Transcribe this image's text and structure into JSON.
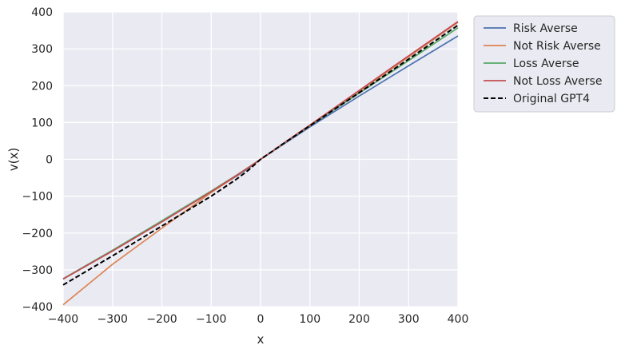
{
  "chart_data": {
    "type": "line",
    "title": "",
    "xlabel": "x",
    "ylabel": "v(x)",
    "xlim": [
      -400,
      400
    ],
    "ylim": [
      -400,
      400
    ],
    "xticks": [
      -400,
      -300,
      -200,
      -100,
      0,
      100,
      200,
      300,
      400
    ],
    "yticks": [
      -400,
      -300,
      -200,
      -100,
      0,
      100,
      200,
      300,
      400
    ],
    "grid": true,
    "legend_position": "outside-right-top",
    "plot_background": "#eaeaf2",
    "x": [
      -400,
      -300,
      -200,
      -100,
      -50,
      -25,
      0,
      25,
      50,
      100,
      200,
      300,
      400
    ],
    "series": [
      {
        "name": "Risk Averse",
        "color": "#4c72b0",
        "dash": "solid",
        "values": [
          -325,
          -247,
          -168,
          -88,
          -47,
          -25,
          0,
          22,
          44,
          88,
          172,
          254,
          335
        ]
      },
      {
        "name": "Not Risk Averse",
        "color": "#dd8452",
        "dash": "solid",
        "values": [
          -395,
          -285,
          -187,
          -90,
          -46,
          -23,
          0,
          23,
          46,
          93,
          185,
          278,
          372
        ]
      },
      {
        "name": "Loss Averse",
        "color": "#55a868",
        "dash": "solid",
        "values": [
          -324,
          -247,
          -167,
          -86,
          -44,
          -22,
          0,
          23,
          46,
          91,
          180,
          268,
          357
        ]
      },
      {
        "name": "Not Loss Averse",
        "color": "#c44e52",
        "dash": "solid",
        "values": [
          -325,
          -249,
          -170,
          -88,
          -45,
          -23,
          0,
          23,
          47,
          93,
          187,
          281,
          374
        ]
      },
      {
        "name": "Original GPT4",
        "color": "#000000",
        "dash": "dashed",
        "values": [
          -341,
          -262,
          -181,
          -100,
          -55,
          -30,
          0,
          23,
          46,
          91,
          181,
          272,
          364
        ]
      }
    ]
  }
}
